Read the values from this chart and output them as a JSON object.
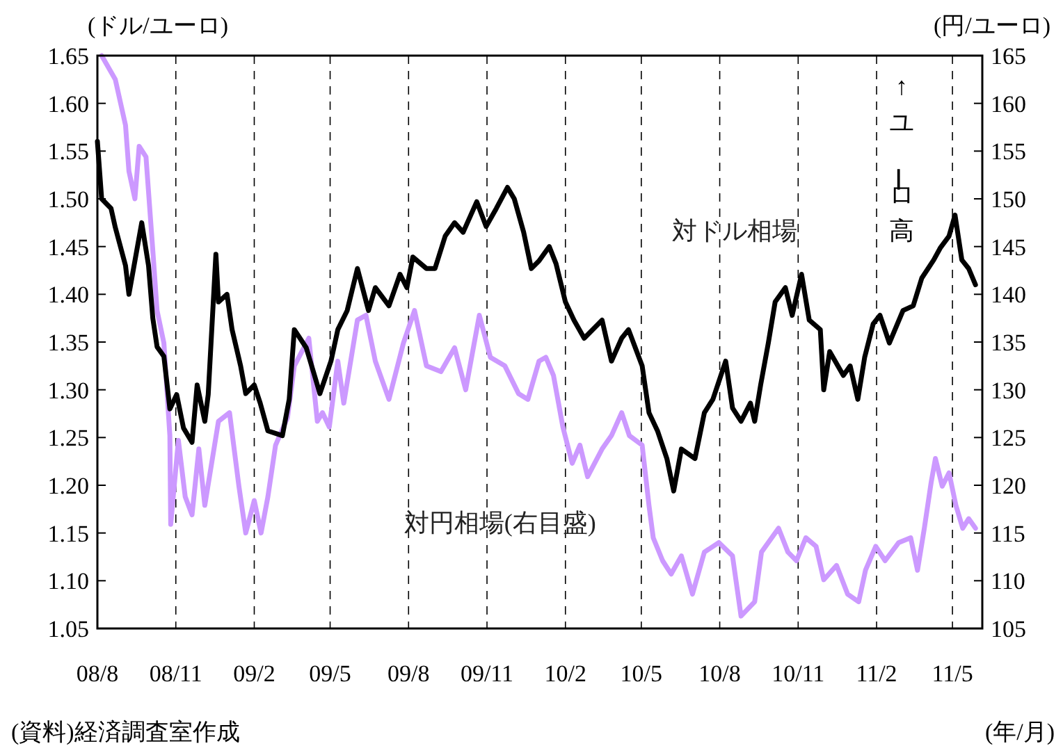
{
  "chart_data": {
    "type": "line",
    "ylabel": "(ドル/ユーロ)",
    "y2label": "(円/ユーロ)",
    "xlabel": "(年/月)",
    "annotations": [
      "↑ユーロ高",
      "(資料)経済調査室作成"
    ],
    "xlim": [
      "2008-08-01",
      "2011-06-05"
    ],
    "xticks": [
      {
        "value": "2008-08-01",
        "label": "08/8"
      },
      {
        "value": "2008-11-01",
        "label": "08/11"
      },
      {
        "value": "2009-02-01",
        "label": "09/2"
      },
      {
        "value": "2009-05-01",
        "label": "09/5"
      },
      {
        "value": "2009-08-01",
        "label": "09/8"
      },
      {
        "value": "2009-11-01",
        "label": "09/11"
      },
      {
        "value": "2010-02-01",
        "label": "10/2"
      },
      {
        "value": "2010-05-01",
        "label": "10/5"
      },
      {
        "value": "2010-08-01",
        "label": "10/8"
      },
      {
        "value": "2010-11-01",
        "label": "10/11"
      },
      {
        "value": "2011-02-01",
        "label": "11/2"
      },
      {
        "value": "2011-05-01",
        "label": "11/5"
      }
    ],
    "ylim": [
      1.05,
      1.65
    ],
    "yticks": [
      1.05,
      {
        "value": 1.1,
        "label": "1.10"
      },
      1.15,
      {
        "value": 1.2,
        "label": "1.20"
      },
      1.25,
      {
        "value": 1.3,
        "label": "1.30"
      },
      1.35,
      {
        "value": 1.4,
        "label": "1.40"
      },
      1.45,
      {
        "value": 1.5,
        "label": "1.50"
      },
      1.55,
      {
        "value": 1.6,
        "label": "1.60"
      },
      1.65
    ],
    "y2lim": [
      105,
      165
    ],
    "y2ticks": [
      105,
      110,
      115,
      120,
      125,
      130,
      135,
      140,
      145,
      150,
      155,
      160,
      165
    ],
    "grid": "x",
    "legend": false,
    "marker": "none",
    "line_style": "solid",
    "series": [
      {
        "name": "対円相場(右目盛)",
        "color": "#cc99ff",
        "axis": "y2",
        "x": [
          "2008-08-06",
          "2008-08-22",
          "2008-09-03",
          "2008-09-07",
          "2008-09-14",
          "2008-09-19",
          "2008-09-27",
          "2008-10-05",
          "2008-10-10",
          "2008-10-18",
          "2008-10-25",
          "2008-10-26",
          "2008-11-04",
          "2008-11-12",
          "2008-11-20",
          "2008-11-28",
          "2008-12-05",
          "2008-12-21",
          "2009-01-03",
          "2009-01-14",
          "2009-01-22",
          "2009-02-01",
          "2009-02-09",
          "2009-02-17",
          "2009-02-26",
          "2009-03-12",
          "2009-03-20",
          "2009-04-06",
          "2009-04-16",
          "2009-04-22",
          "2009-04-30",
          "2009-05-10",
          "2009-05-17",
          "2009-06-02",
          "2009-06-12",
          "2009-06-23",
          "2009-07-09",
          "2009-07-26",
          "2009-08-08",
          "2009-08-22",
          "2009-09-08",
          "2009-09-24",
          "2009-10-07",
          "2009-10-23",
          "2009-11-05",
          "2009-11-22",
          "2009-12-08",
          "2009-12-19",
          "2010-01-01",
          "2010-01-09",
          "2010-01-18",
          "2010-01-29",
          "2010-02-09",
          "2010-02-18",
          "2010-02-27",
          "2010-03-16",
          "2010-03-27",
          "2010-04-08",
          "2010-04-17",
          "2010-05-02",
          "2010-05-10",
          "2010-05-15",
          "2010-05-26",
          "2010-06-05",
          "2010-06-17",
          "2010-06-30",
          "2010-07-14",
          "2010-07-31",
          "2010-08-16",
          "2010-08-26",
          "2010-09-11",
          "2010-09-19",
          "2010-10-09",
          "2010-10-20",
          "2010-10-30",
          "2010-11-10",
          "2010-11-22",
          "2010-12-01",
          "2010-12-16",
          "2010-12-29",
          "2011-01-11",
          "2011-01-19",
          "2011-01-31",
          "2011-02-11",
          "2011-02-27",
          "2011-03-13",
          "2011-03-21",
          "2011-03-29",
          "2011-04-06",
          "2011-04-11",
          "2011-04-19",
          "2011-04-27",
          "2011-05-05",
          "2011-05-13",
          "2011-05-20",
          "2011-05-28"
        ],
        "values": [
          165,
          162.5,
          157.7,
          152.9,
          150,
          155.5,
          154.4,
          144.6,
          138.3,
          134.9,
          125.2,
          115.9,
          124.7,
          118.8,
          116.9,
          123.8,
          117.9,
          126.7,
          127.6,
          119.9,
          115,
          118.4,
          115,
          118.8,
          124.2,
          127.1,
          132.5,
          135.4,
          126.7,
          127.6,
          126.1,
          133,
          128.6,
          137.3,
          137.8,
          133,
          129,
          134.9,
          138.3,
          132.5,
          131.9,
          134.4,
          130,
          137.8,
          133.4,
          132.5,
          129.6,
          129,
          133,
          133.4,
          131.5,
          126.1,
          122.3,
          124.2,
          120.9,
          123.8,
          125.2,
          127.6,
          125.2,
          124.2,
          117.9,
          114.5,
          112.1,
          110.7,
          112.6,
          108.6,
          113,
          114,
          112.6,
          106.3,
          107.8,
          113,
          115.5,
          113,
          112.1,
          114.5,
          113.6,
          110.1,
          111.6,
          108.6,
          107.8,
          111.1,
          113.6,
          112.1,
          114,
          114.5,
          111.1,
          115.5,
          120.3,
          122.8,
          119.9,
          121.3,
          117.9,
          115.5,
          116.5,
          115.5
        ]
      },
      {
        "name": "対ドル相場",
        "color": "#000000",
        "x": [
          "2008-08-01",
          "2008-08-06",
          "2008-08-17",
          "2008-08-22",
          "2008-09-03",
          "2008-09-07",
          "2008-09-22",
          "2008-09-30",
          "2008-10-05",
          "2008-10-10",
          "2008-10-18",
          "2008-10-25",
          "2008-11-02",
          "2008-11-10",
          "2008-11-20",
          "2008-11-26",
          "2008-12-05",
          "2008-12-09",
          "2008-12-18",
          "2008-12-21",
          "2008-12-31",
          "2009-01-06",
          "2009-01-16",
          "2009-01-22",
          "2009-02-01",
          "2009-02-08",
          "2009-02-17",
          "2009-03-06",
          "2009-03-14",
          "2009-03-20",
          "2009-04-03",
          "2009-04-16",
          "2009-04-19",
          "2009-05-02",
          "2009-05-10",
          "2009-05-21",
          "2009-06-02",
          "2009-06-15",
          "2009-06-23",
          "2009-07-09",
          "2009-07-22",
          "2009-07-30",
          "2009-08-06",
          "2009-08-22",
          "2009-09-01",
          "2009-09-13",
          "2009-09-24",
          "2009-10-04",
          "2009-10-20",
          "2009-10-31",
          "2009-11-12",
          "2009-11-25",
          "2009-12-03",
          "2009-12-14",
          "2009-12-23",
          "2010-01-01",
          "2010-01-13",
          "2010-01-21",
          "2010-02-01",
          "2010-02-11",
          "2010-02-23",
          "2010-03-16",
          "2010-03-27",
          "2010-04-08",
          "2010-04-16",
          "2010-04-24",
          "2010-05-02",
          "2010-05-10",
          "2010-05-20",
          "2010-05-31",
          "2010-06-08",
          "2010-06-17",
          "2010-07-03",
          "2010-07-14",
          "2010-07-24",
          "2010-08-08",
          "2010-08-16",
          "2010-08-26",
          "2010-09-06",
          "2010-09-11",
          "2010-09-18",
          "2010-09-27",
          "2010-10-05",
          "2010-10-17",
          "2010-10-25",
          "2010-11-05",
          "2010-11-14",
          "2010-11-27",
          "2010-12-01",
          "2010-12-08",
          "2010-12-24",
          "2011-01-01",
          "2011-01-10",
          "2011-01-18",
          "2011-01-28",
          "2011-02-05",
          "2011-02-16",
          "2011-03-04",
          "2011-03-16",
          "2011-03-26",
          "2011-04-09",
          "2011-04-17",
          "2011-04-27",
          "2011-05-04",
          "2011-05-12",
          "2011-05-20",
          "2011-05-28"
        ],
        "values": [
          1.56,
          1.5,
          1.49,
          1.47,
          1.43,
          1.4,
          1.475,
          1.43,
          1.375,
          1.345,
          1.335,
          1.28,
          1.295,
          1.26,
          1.245,
          1.305,
          1.267,
          1.295,
          1.442,
          1.392,
          1.4,
          1.363,
          1.325,
          1.296,
          1.305,
          1.286,
          1.257,
          1.252,
          1.29,
          1.363,
          1.344,
          1.305,
          1.296,
          1.33,
          1.363,
          1.383,
          1.427,
          1.383,
          1.407,
          1.388,
          1.421,
          1.407,
          1.439,
          1.427,
          1.427,
          1.461,
          1.475,
          1.465,
          1.497,
          1.471,
          1.49,
          1.512,
          1.5,
          1.465,
          1.427,
          1.435,
          1.45,
          1.432,
          1.392,
          1.373,
          1.354,
          1.373,
          1.33,
          1.354,
          1.363,
          1.344,
          1.325,
          1.276,
          1.257,
          1.228,
          1.194,
          1.238,
          1.228,
          1.276,
          1.29,
          1.33,
          1.281,
          1.267,
          1.286,
          1.267,
          1.305,
          1.349,
          1.392,
          1.407,
          1.378,
          1.421,
          1.373,
          1.363,
          1.3,
          1.34,
          1.315,
          1.325,
          1.29,
          1.334,
          1.369,
          1.378,
          1.349,
          1.383,
          1.388,
          1.417,
          1.436,
          1.449,
          1.461,
          1.483,
          1.436,
          1.427,
          1.41
        ]
      }
    ]
  }
}
